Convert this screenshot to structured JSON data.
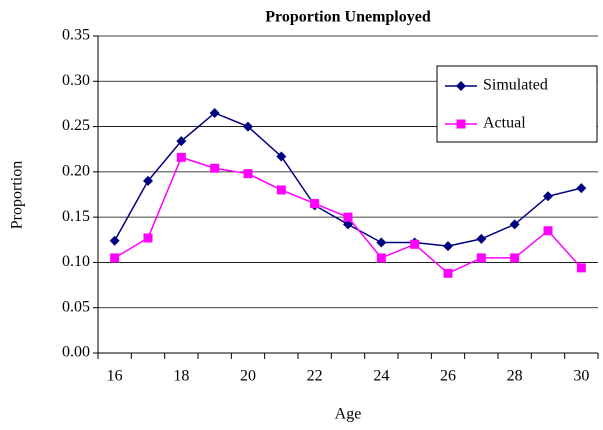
{
  "chart_data": {
    "type": "line",
    "title": "Proportion Unemployed",
    "x_label": "Age",
    "y_label": "Proportion",
    "categories": [
      "16",
      null,
      "18",
      null,
      "20",
      null,
      "22",
      null,
      "24",
      null,
      "26",
      null,
      "28",
      null,
      "30"
    ],
    "series": [
      {
        "name": "Simulated",
        "color": "#000080",
        "marker": "diamond",
        "values": [
          0.124,
          0.19,
          0.234,
          0.265,
          0.25,
          0.217,
          0.163,
          0.142,
          0.122,
          0.122,
          0.118,
          0.126,
          0.142,
          0.173,
          0.182
        ]
      },
      {
        "name": "Actual",
        "color": "#ff00ff",
        "marker": "square",
        "values": [
          0.105,
          0.127,
          0.216,
          0.204,
          0.198,
          0.18,
          0.165,
          0.15,
          0.105,
          0.12,
          0.088,
          0.105,
          0.105,
          0.135,
          0.094
        ]
      }
    ],
    "ylim": [
      0,
      0.35
    ],
    "yticks": [
      {
        "value": 0,
        "label": "0.00"
      },
      {
        "value": 0.05,
        "label": "0.05"
      },
      {
        "value": 0.1,
        "label": "0.10"
      },
      {
        "value": 0.15,
        "label": "0.15"
      },
      {
        "value": 0.2,
        "label": "0.20"
      },
      {
        "value": 0.25,
        "label": "0.25"
      },
      {
        "value": 0.3,
        "label": "0.30"
      },
      {
        "value": 0.35,
        "label": "0.35"
      }
    ],
    "grid": true,
    "legend": "upper right"
  }
}
